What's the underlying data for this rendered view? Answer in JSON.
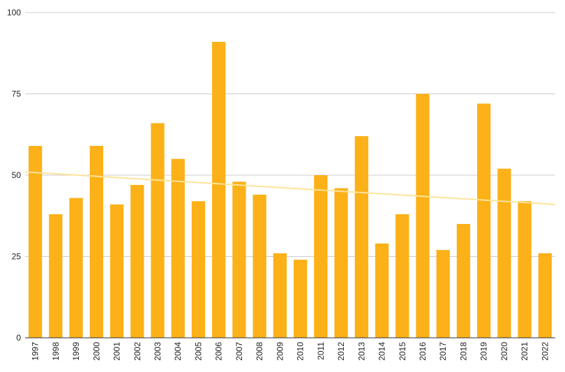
{
  "chart_data": {
    "type": "bar",
    "title": "",
    "xlabel": "",
    "ylabel": "",
    "ylim": [
      0,
      100
    ],
    "yticks": [
      "0",
      "25",
      "50",
      "75",
      "100"
    ],
    "grid": true,
    "legend": "none",
    "colors": {
      "bar": "#FBB117",
      "trendline": "#FDE39B",
      "grid": "#CCCCCC"
    },
    "categories": [
      "1997",
      "1998",
      "1999",
      "2000",
      "2001",
      "2002",
      "2003",
      "2004",
      "2005",
      "2006",
      "2007",
      "2008",
      "2009",
      "2010",
      "2011",
      "2012",
      "2013",
      "2014",
      "2015",
      "2016",
      "2017",
      "2018",
      "2019",
      "2020",
      "2021",
      "2022"
    ],
    "values": [
      59,
      38,
      43,
      59,
      41,
      47,
      66,
      55,
      42,
      91,
      48,
      44,
      26,
      24,
      50,
      46,
      62,
      29,
      38,
      75,
      27,
      35,
      72,
      52,
      42,
      26
    ],
    "trendline": {
      "type": "linear",
      "start": 51,
      "end": 41
    }
  }
}
